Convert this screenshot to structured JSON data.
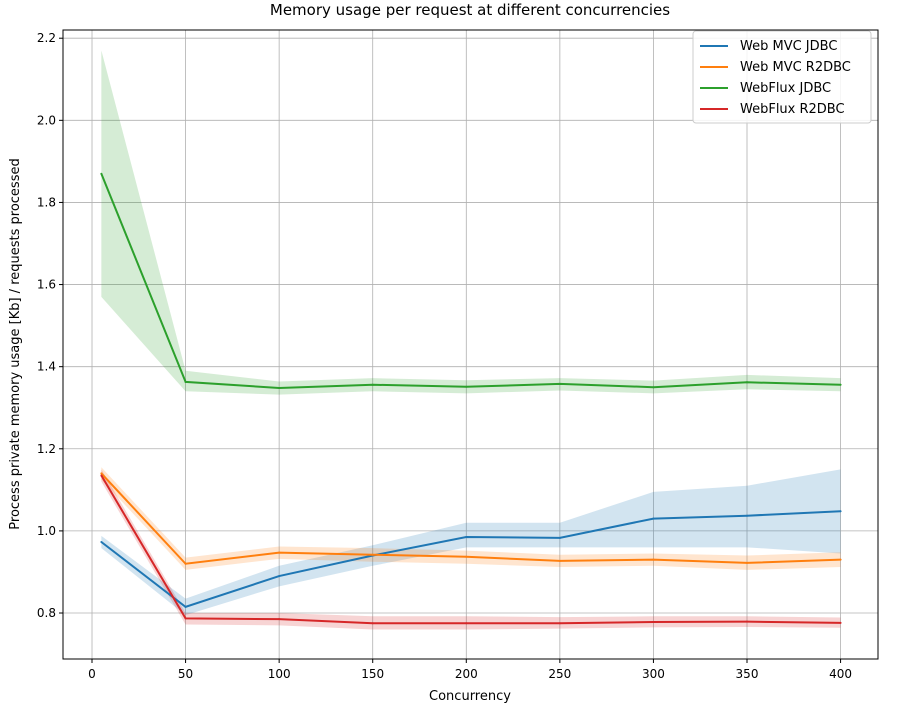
{
  "chart_data": {
    "type": "line",
    "title": "Memory usage per request at different concurrencies",
    "xlabel": "Concurrency",
    "ylabel": "Process private memory usage [Kb] / requests processed",
    "x": [
      5,
      50,
      100,
      150,
      200,
      250,
      300,
      350,
      400
    ],
    "xlim": [
      -15.5,
      420
    ],
    "ylim": [
      0.688,
      2.22
    ],
    "xticks": [
      0,
      50,
      100,
      150,
      200,
      250,
      300,
      350,
      400
    ],
    "yticks": [
      0.8,
      1.0,
      1.2,
      1.4,
      1.6,
      1.8,
      2.0,
      2.2
    ],
    "ytick_labels": [
      "0.8",
      "1.0",
      "1.2",
      "1.4",
      "1.6",
      "1.8",
      "2.0",
      "2.2"
    ],
    "grid": true,
    "legend_position": "top-right",
    "series": [
      {
        "name": "Web MVC JDBC",
        "color": "#1f77b4",
        "values": [
          0.973,
          0.815,
          0.89,
          0.94,
          0.985,
          0.983,
          1.03,
          1.037,
          1.048
        ],
        "lower": [
          0.958,
          0.795,
          0.865,
          0.915,
          0.96,
          0.96,
          0.96,
          0.96,
          0.945
        ],
        "upper": [
          0.988,
          0.835,
          0.915,
          0.965,
          1.02,
          1.02,
          1.095,
          1.11,
          1.15
        ]
      },
      {
        "name": "Web MVC R2DBC",
        "color": "#ff7f0e",
        "values": [
          1.14,
          0.92,
          0.947,
          0.942,
          0.937,
          0.927,
          0.93,
          0.922,
          0.93
        ],
        "lower": [
          1.125,
          0.905,
          0.932,
          0.925,
          0.92,
          0.912,
          0.915,
          0.905,
          0.912
        ],
        "upper": [
          1.155,
          0.935,
          0.962,
          0.958,
          0.952,
          0.942,
          0.945,
          0.94,
          0.948
        ]
      },
      {
        "name": "WebFlux JDBC",
        "color": "#2ca02c",
        "values": [
          1.87,
          1.363,
          1.348,
          1.356,
          1.351,
          1.358,
          1.35,
          1.362,
          1.356
        ],
        "lower": [
          1.57,
          1.34,
          1.332,
          1.34,
          1.335,
          1.342,
          1.335,
          1.345,
          1.34
        ],
        "upper": [
          2.17,
          1.39,
          1.364,
          1.372,
          1.367,
          1.372,
          1.366,
          1.38,
          1.372
        ]
      },
      {
        "name": "WebFlux R2DBC",
        "color": "#d62728",
        "values": [
          1.135,
          0.787,
          0.785,
          0.775,
          0.775,
          0.775,
          0.778,
          0.779,
          0.776
        ],
        "lower": [
          1.12,
          0.772,
          0.77,
          0.76,
          0.76,
          0.762,
          0.765,
          0.766,
          0.764
        ],
        "upper": [
          1.15,
          0.8,
          0.8,
          0.792,
          0.792,
          0.79,
          0.792,
          0.792,
          0.789
        ]
      }
    ]
  }
}
